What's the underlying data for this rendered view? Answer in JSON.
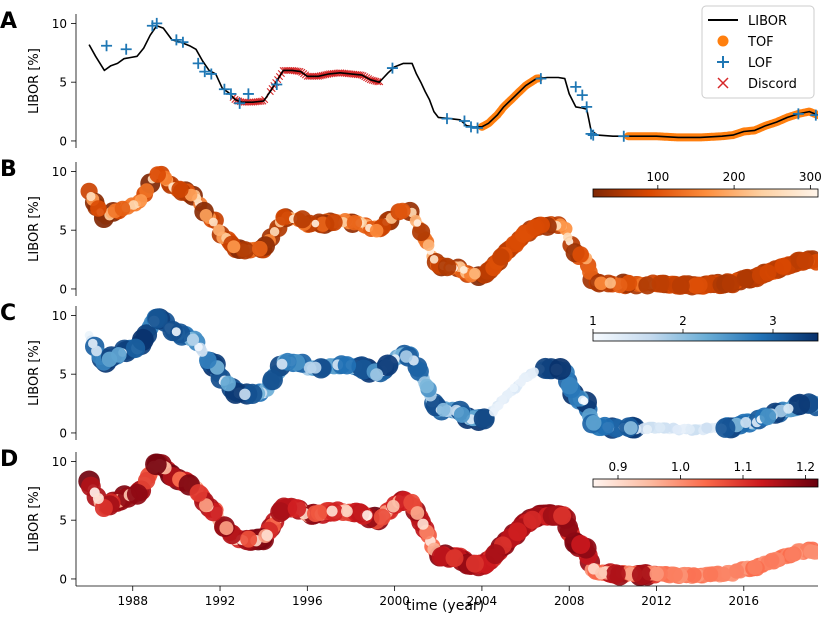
{
  "chart_data": {
    "type": "multi-panel",
    "xlabel": "time (year)",
    "xlim": [
      1985.4,
      2019.4
    ],
    "xticks": [
      1988,
      1992,
      1996,
      2000,
      2004,
      2008,
      2012,
      2016
    ],
    "series": {
      "libor": [
        [
          1986.0,
          8.2
        ],
        [
          1986.3,
          7.2
        ],
        [
          1986.7,
          6.0
        ],
        [
          1987.0,
          6.4
        ],
        [
          1987.3,
          6.6
        ],
        [
          1987.6,
          7.0
        ],
        [
          1987.9,
          7.1
        ],
        [
          1988.2,
          7.2
        ],
        [
          1988.5,
          7.9
        ],
        [
          1988.8,
          9.0
        ],
        [
          1989.1,
          9.8
        ],
        [
          1989.4,
          9.6
        ],
        [
          1989.8,
          8.6
        ],
        [
          1990.2,
          8.4
        ],
        [
          1990.6,
          8.1
        ],
        [
          1990.9,
          7.8
        ],
        [
          1991.2,
          6.8
        ],
        [
          1991.5,
          6.0
        ],
        [
          1991.8,
          5.7
        ],
        [
          1992.1,
          4.5
        ],
        [
          1992.4,
          4.1
        ],
        [
          1992.7,
          3.5
        ],
        [
          1993.0,
          3.3
        ],
        [
          1993.5,
          3.3
        ],
        [
          1994.0,
          3.4
        ],
        [
          1994.3,
          4.2
        ],
        [
          1994.6,
          5.1
        ],
        [
          1994.9,
          6.0
        ],
        [
          1995.3,
          6.0
        ],
        [
          1995.7,
          5.9
        ],
        [
          1996.0,
          5.5
        ],
        [
          1996.5,
          5.5
        ],
        [
          1997.0,
          5.7
        ],
        [
          1997.5,
          5.8
        ],
        [
          1998.0,
          5.7
        ],
        [
          1998.5,
          5.6
        ],
        [
          1998.9,
          5.2
        ],
        [
          1999.3,
          5.0
        ],
        [
          1999.7,
          5.8
        ],
        [
          2000.0,
          6.3
        ],
        [
          2000.4,
          6.6
        ],
        [
          2000.8,
          6.6
        ],
        [
          2001.0,
          5.7
        ],
        [
          2001.2,
          5.0
        ],
        [
          2001.4,
          4.2
        ],
        [
          2001.6,
          3.5
        ],
        [
          2001.8,
          2.5
        ],
        [
          2002.0,
          2.0
        ],
        [
          2002.5,
          1.9
        ],
        [
          2003.0,
          1.8
        ],
        [
          2003.3,
          1.3
        ],
        [
          2003.6,
          1.2
        ],
        [
          2004.0,
          1.2
        ],
        [
          2004.3,
          1.5
        ],
        [
          2004.7,
          2.2
        ],
        [
          2005.0,
          2.9
        ],
        [
          2005.5,
          3.8
        ],
        [
          2006.0,
          4.7
        ],
        [
          2006.5,
          5.3
        ],
        [
          2007.0,
          5.4
        ],
        [
          2007.5,
          5.4
        ],
        [
          2007.8,
          5.3
        ],
        [
          2008.0,
          4.0
        ],
        [
          2008.3,
          2.9
        ],
        [
          2008.6,
          2.8
        ],
        [
          2008.8,
          2.7
        ],
        [
          2008.9,
          1.8
        ],
        [
          2009.0,
          0.9
        ],
        [
          2009.3,
          0.5
        ],
        [
          2010.0,
          0.4
        ],
        [
          2011.0,
          0.4
        ],
        [
          2012.0,
          0.4
        ],
        [
          2013.0,
          0.3
        ],
        [
          2014.0,
          0.3
        ],
        [
          2015.0,
          0.4
        ],
        [
          2015.5,
          0.5
        ],
        [
          2016.0,
          0.8
        ],
        [
          2016.5,
          0.9
        ],
        [
          2017.0,
          1.3
        ],
        [
          2017.5,
          1.6
        ],
        [
          2018.0,
          2.0
        ],
        [
          2018.5,
          2.3
        ],
        [
          2019.0,
          2.5
        ],
        [
          2019.4,
          2.2
        ]
      ],
      "tof_range": [
        [
          2004.0,
          2006.6
        ],
        [
          2010.7,
          2019.4
        ]
      ],
      "lof": [
        [
          1986.8,
          8.1
        ],
        [
          1987.7,
          7.8
        ],
        [
          1988.9,
          9.8
        ],
        [
          1989.1,
          10.0
        ],
        [
          1990.0,
          8.6
        ],
        [
          1990.3,
          8.4
        ],
        [
          1991.0,
          6.6
        ],
        [
          1991.3,
          5.9
        ],
        [
          1991.6,
          5.7
        ],
        [
          1992.2,
          4.4
        ],
        [
          1992.5,
          4.0
        ],
        [
          1992.9,
          3.2
        ],
        [
          1993.3,
          4.0
        ],
        [
          1994.6,
          4.8
        ],
        [
          1999.9,
          6.2
        ],
        [
          2002.4,
          1.9
        ],
        [
          2003.2,
          1.7
        ],
        [
          2003.5,
          1.2
        ],
        [
          2003.8,
          1.1
        ],
        [
          2006.7,
          5.3
        ],
        [
          2008.3,
          4.6
        ],
        [
          2008.6,
          3.9
        ],
        [
          2008.8,
          2.9
        ],
        [
          2009.0,
          0.6
        ],
        [
          2009.1,
          0.5
        ],
        [
          2010.5,
          0.4
        ],
        [
          2018.5,
          2.3
        ],
        [
          2019.3,
          2.2
        ]
      ],
      "discord_range": [
        [
          1992.6,
          1994.1
        ],
        [
          1994.3,
          1999.4
        ]
      ],
      "tof_fraction": 0.35
    },
    "panels": [
      {
        "label": "A",
        "ylabel": "LIBOR [%]",
        "yticks": [
          0,
          5,
          10
        ],
        "ylim": [
          -0.6,
          10.8
        ],
        "legend": [
          "LIBOR",
          "TOF",
          "LOF",
          "Discord"
        ],
        "legend_position": "top-right"
      },
      {
        "label": "B",
        "ylabel": "LIBOR [%]",
        "yticks": [
          0,
          5,
          10
        ],
        "ylim": [
          -0.6,
          10.8
        ],
        "colorbar": {
          "ticks": [
            "100",
            "200",
            "300"
          ],
          "values": [
            100,
            200,
            300
          ],
          "range": [
            15,
            310
          ],
          "colors": [
            "#7f2704",
            "#d94801",
            "#fd8d3c",
            "#fdd0a2",
            "#fff5eb"
          ]
        }
      },
      {
        "label": "C",
        "ylabel": "LIBOR [%]",
        "yticks": [
          0,
          5,
          10
        ],
        "ylim": [
          -0.6,
          10.8
        ],
        "colorbar": {
          "ticks": [
            "1",
            "2",
            "3"
          ],
          "values": [
            1,
            2,
            3
          ],
          "range": [
            1.0,
            3.5
          ],
          "colors": [
            "#f7fbff",
            "#c6dbef",
            "#6baed6",
            "#2171b5",
            "#08306b"
          ]
        }
      },
      {
        "label": "D",
        "ylabel": "LIBOR [%]",
        "yticks": [
          0,
          5,
          10
        ],
        "ylim": [
          -0.6,
          10.8
        ],
        "colorbar": {
          "ticks": [
            "0.9",
            "1.0",
            "1.1",
            "1.2"
          ],
          "values": [
            0.9,
            1.0,
            1.1,
            1.2
          ],
          "range": [
            0.86,
            1.22
          ],
          "colors": [
            "#fff5f0",
            "#fcbba1",
            "#fb6a4a",
            "#cb181d",
            "#67000d"
          ]
        }
      }
    ],
    "colors": {
      "libor": "#000000",
      "tof": "#ff7f0e",
      "lof": "#1f77b4",
      "discord": "#d62728"
    }
  }
}
